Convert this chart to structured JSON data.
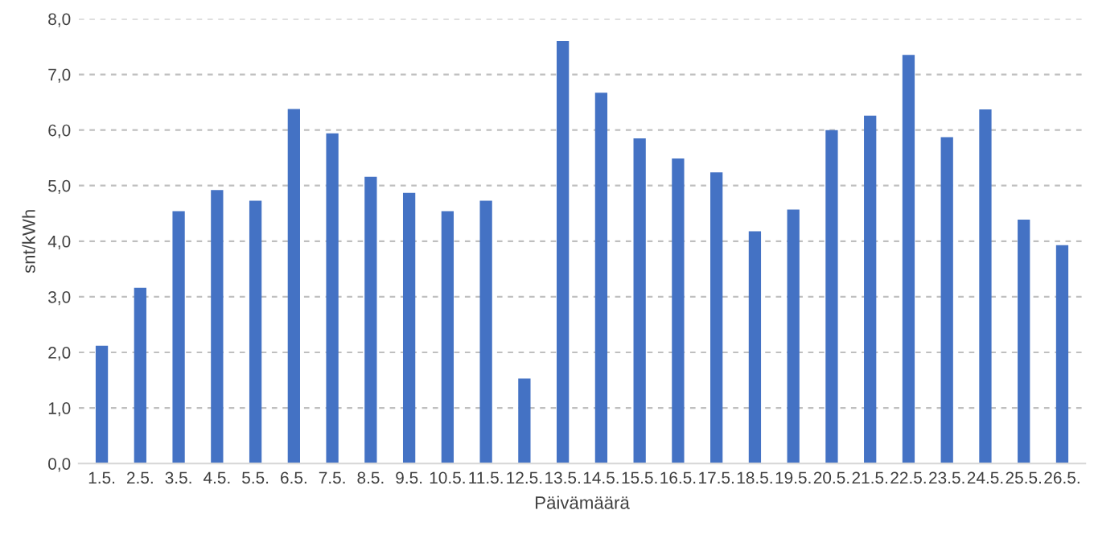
{
  "chart_data": {
    "type": "bar",
    "xlabel": "Päivämäärä",
    "ylabel": "snt/kWh",
    "color": "#4472c4",
    "categories": [
      "1.5.",
      "2.5.",
      "3.5.",
      "4.5.",
      "5.5.",
      "6.5.",
      "7.5.",
      "8.5.",
      "9.5.",
      "10.5.",
      "11.5.",
      "12.5.",
      "13.5.",
      "14.5.",
      "15.5.",
      "16.5.",
      "17.5.",
      "18.5.",
      "19.5.",
      "20.5.",
      "21.5.",
      "22.5.",
      "23.5.",
      "24.5.",
      "25.5.",
      "26.5."
    ],
    "values": [
      2.12,
      3.16,
      4.54,
      4.92,
      4.73,
      6.38,
      5.94,
      5.16,
      4.87,
      4.54,
      4.73,
      1.53,
      7.6,
      6.67,
      5.85,
      5.49,
      5.24,
      4.18,
      4.57,
      6.0,
      6.26,
      7.35,
      5.87,
      6.37,
      4.39,
      3.93
    ],
    "ylim": [
      0,
      8
    ],
    "yticks": [
      {
        "value": 0,
        "label": "0,0"
      },
      {
        "value": 1,
        "label": "1,0"
      },
      {
        "value": 2,
        "label": "2,0"
      },
      {
        "value": 3,
        "label": "3,0"
      },
      {
        "value": 4,
        "label": "4,0"
      },
      {
        "value": 5,
        "label": "5,0"
      },
      {
        "value": 6,
        "label": "6,0"
      },
      {
        "value": 7,
        "label": "7,0"
      },
      {
        "value": 8,
        "label": "8,0"
      }
    ],
    "grid": "y",
    "line_style": "dashed"
  }
}
